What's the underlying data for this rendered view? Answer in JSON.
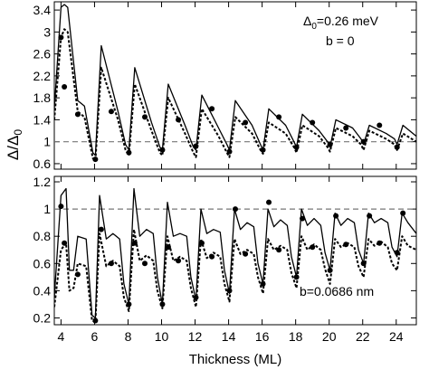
{
  "chart_data": [
    {
      "type": "line",
      "panel": "top",
      "annotations": [
        "b = 0"
      ],
      "delta0": {
        "sym": "Δ",
        "sub": "0",
        "rest": "=0.26 meV"
      },
      "xlim": [
        3.6,
        25.2
      ],
      "ylim": [
        0.5,
        3.55
      ],
      "yticks": [
        0.6,
        1,
        1.4,
        1.8,
        2.2,
        2.6,
        3,
        3.4
      ],
      "yticklabels": [
        "0.6",
        "1",
        "1.4",
        "1.8",
        "2.2",
        "2.6",
        "3",
        "3.4"
      ],
      "reference_line": 1,
      "series": [
        {
          "style": "solid",
          "x": [
            3.6,
            4.0,
            4.2,
            4.4,
            5.0,
            5.4,
            5.9,
            6.05,
            6.4,
            7.4,
            7.85,
            8.05,
            8.4,
            9.4,
            9.9,
            10.05,
            10.4,
            11.4,
            11.9,
            12.05,
            12.4,
            13.4,
            13.9,
            14.05,
            14.4,
            15.4,
            15.9,
            16.05,
            16.4,
            17.4,
            17.9,
            18.05,
            18.4,
            19.4,
            19.9,
            20.05,
            20.4,
            21.4,
            21.9,
            22.05,
            22.4,
            23.4,
            23.9,
            24.05,
            24.4,
            25.2
          ],
          "y": [
            1.6,
            3.45,
            3.5,
            3.45,
            1.75,
            1.65,
            0.8,
            0.75,
            2.75,
            1.55,
            0.95,
            0.85,
            2.35,
            1.35,
            0.9,
            0.85,
            2.05,
            1.3,
            0.9,
            0.85,
            1.85,
            1.25,
            0.95,
            0.85,
            1.75,
            1.3,
            0.95,
            0.85,
            1.6,
            1.3,
            1.0,
            0.9,
            1.5,
            1.2,
            1.0,
            0.9,
            1.4,
            1.25,
            1.05,
            0.95,
            1.3,
            1.15,
            1.05,
            0.95,
            1.3,
            1.1
          ]
        },
        {
          "style": "dotted",
          "x": [
            3.6,
            4.0,
            4.2,
            4.4,
            5.0,
            5.4,
            5.9,
            6.05,
            6.4,
            7.4,
            7.85,
            8.05,
            8.4,
            9.4,
            9.9,
            10.05,
            10.4,
            11.4,
            11.9,
            12.05,
            12.4,
            13.4,
            13.9,
            14.05,
            14.4,
            15.4,
            15.9,
            16.05,
            16.4,
            17.4,
            17.9,
            18.05,
            18.4,
            19.4,
            19.9,
            20.05,
            20.4,
            21.4,
            21.9,
            22.05,
            22.4,
            23.4,
            23.9,
            24.05,
            24.4,
            25.2
          ],
          "y": [
            1.4,
            2.9,
            3.05,
            3.0,
            1.55,
            1.45,
            0.7,
            0.65,
            2.35,
            1.4,
            0.85,
            0.75,
            2.05,
            1.2,
            0.8,
            0.75,
            1.8,
            1.15,
            0.8,
            0.72,
            1.6,
            1.1,
            0.8,
            0.72,
            1.45,
            1.15,
            0.85,
            0.78,
            1.35,
            1.15,
            0.9,
            0.8,
            1.3,
            1.1,
            0.9,
            0.82,
            1.25,
            1.1,
            0.95,
            0.85,
            1.2,
            1.05,
            0.95,
            0.85,
            1.15,
            1.0
          ]
        }
      ],
      "markers": {
        "x": [
          4.0,
          4.2,
          5.0,
          6.05,
          7.0,
          8.05,
          9.0,
          10.05,
          11.0,
          12.05,
          13.0,
          14.05,
          15.0,
          16.05,
          17.0,
          18.05,
          19.0,
          20.05,
          21.0,
          22.05,
          23.0,
          24.05
        ],
        "y": [
          2.9,
          2.0,
          1.5,
          0.68,
          1.55,
          0.8,
          1.45,
          0.85,
          1.4,
          0.92,
          1.6,
          0.82,
          1.35,
          0.85,
          1.45,
          0.9,
          1.35,
          0.95,
          1.25,
          1.0,
          1.3,
          0.9
        ]
      }
    },
    {
      "type": "line",
      "panel": "bottom",
      "annotations": [
        "b=0.0686 nm"
      ],
      "xlabel": "Thickness (ML)",
      "xlim": [
        3.6,
        25.2
      ],
      "ylim": [
        0.15,
        1.24
      ],
      "xticks": [
        4,
        6,
        8,
        10,
        12,
        14,
        16,
        18,
        20,
        22,
        24
      ],
      "xticklabels": [
        "4",
        "6",
        "8",
        "10",
        "12",
        "14",
        "16",
        "18",
        "20",
        "22",
        "24"
      ],
      "yticks": [
        0.2,
        0.4,
        0.6,
        0.8,
        1.0,
        1.2
      ],
      "yticklabels": [
        "0.2",
        "0.4",
        "0.6",
        "0.8",
        "1",
        "1.2"
      ],
      "reference_line": 1,
      "series": [
        {
          "style": "solid",
          "x": [
            3.6,
            4.0,
            4.3,
            4.5,
            4.75,
            5.0,
            5.5,
            5.85,
            6.05,
            6.3,
            6.7,
            7.1,
            7.5,
            7.75,
            8.05,
            8.35,
            8.7,
            9.1,
            9.5,
            9.75,
            10.05,
            10.35,
            10.7,
            11.1,
            11.5,
            11.75,
            12.05,
            12.35,
            12.7,
            13.1,
            13.5,
            13.75,
            14.05,
            14.35,
            14.7,
            15.1,
            15.5,
            15.75,
            16.05,
            16.35,
            16.7,
            17.1,
            17.5,
            17.75,
            18.05,
            18.35,
            18.7,
            19.1,
            19.5,
            19.75,
            20.05,
            20.35,
            20.7,
            21.1,
            21.5,
            21.75,
            22.05,
            22.35,
            22.7,
            23.1,
            23.5,
            23.75,
            24.05,
            24.35,
            24.7,
            25.2
          ],
          "y": [
            0.35,
            1.1,
            1.15,
            0.55,
            0.55,
            0.8,
            0.78,
            0.22,
            0.2,
            1.1,
            0.78,
            0.82,
            0.78,
            0.45,
            0.3,
            1.15,
            0.8,
            0.85,
            0.82,
            0.5,
            0.3,
            1.05,
            0.8,
            0.82,
            0.8,
            0.5,
            0.33,
            1.0,
            0.82,
            0.85,
            0.83,
            0.55,
            0.38,
            1.0,
            0.85,
            0.9,
            0.87,
            0.6,
            0.45,
            1.0,
            0.87,
            0.92,
            0.88,
            0.65,
            0.5,
            1.0,
            0.88,
            0.93,
            0.88,
            0.68,
            0.55,
            0.97,
            0.88,
            0.93,
            0.9,
            0.7,
            0.6,
            0.97,
            0.9,
            0.93,
            0.9,
            0.72,
            0.65,
            0.97,
            0.9,
            0.82
          ]
        },
        {
          "style": "dotted",
          "x": [
            3.6,
            4.0,
            4.3,
            4.5,
            4.75,
            5.0,
            5.5,
            5.85,
            6.05,
            6.3,
            6.7,
            7.1,
            7.5,
            7.75,
            8.05,
            8.35,
            8.7,
            9.1,
            9.5,
            9.75,
            10.05,
            10.35,
            10.7,
            11.1,
            11.5,
            11.75,
            12.05,
            12.35,
            12.7,
            13.1,
            13.5,
            13.75,
            14.05,
            14.35,
            14.7,
            15.1,
            15.5,
            15.75,
            16.05,
            16.35,
            16.7,
            17.1,
            17.5,
            17.75,
            18.05,
            18.35,
            18.7,
            19.1,
            19.5,
            19.75,
            20.05,
            20.35,
            20.7,
            21.1,
            21.5,
            21.75,
            22.05,
            22.35,
            22.7,
            23.1,
            23.5,
            23.75,
            24.05,
            24.35,
            24.7,
            25.2
          ],
          "y": [
            0.28,
            0.7,
            0.75,
            0.4,
            0.42,
            0.6,
            0.58,
            0.18,
            0.17,
            0.82,
            0.58,
            0.62,
            0.58,
            0.35,
            0.25,
            0.85,
            0.62,
            0.66,
            0.62,
            0.4,
            0.27,
            0.8,
            0.62,
            0.65,
            0.62,
            0.42,
            0.28,
            0.78,
            0.64,
            0.68,
            0.65,
            0.45,
            0.32,
            0.78,
            0.67,
            0.7,
            0.67,
            0.5,
            0.38,
            0.78,
            0.7,
            0.73,
            0.7,
            0.53,
            0.42,
            0.8,
            0.7,
            0.74,
            0.7,
            0.56,
            0.45,
            0.78,
            0.72,
            0.75,
            0.72,
            0.58,
            0.5,
            0.78,
            0.73,
            0.76,
            0.72,
            0.6,
            0.55,
            0.8,
            0.73,
            0.7
          ]
        }
      ],
      "markers": {
        "x": [
          4.0,
          4.2,
          5.0,
          6.05,
          6.4,
          7.0,
          8.05,
          8.4,
          9.0,
          10.05,
          10.4,
          11.0,
          12.05,
          12.4,
          13.0,
          14.05,
          14.4,
          15.0,
          16.05,
          16.4,
          17.0,
          18.05,
          18.4,
          19.0,
          20.05,
          20.4,
          21.0,
          22.05,
          22.4,
          23.0,
          24.05,
          24.4
        ],
        "y": [
          1.02,
          0.75,
          0.52,
          0.18,
          0.85,
          0.6,
          0.3,
          0.75,
          0.6,
          0.3,
          0.72,
          0.62,
          0.35,
          0.75,
          0.65,
          0.4,
          1.0,
          0.67,
          0.45,
          1.05,
          0.7,
          0.5,
          0.93,
          0.72,
          0.55,
          0.95,
          0.74,
          0.6,
          0.95,
          0.75,
          0.68,
          0.97
        ]
      }
    }
  ],
  "shared_ylabel": {
    "sym": "Δ",
    "sep": "/",
    "sym2": "Δ",
    "sub": "0"
  }
}
